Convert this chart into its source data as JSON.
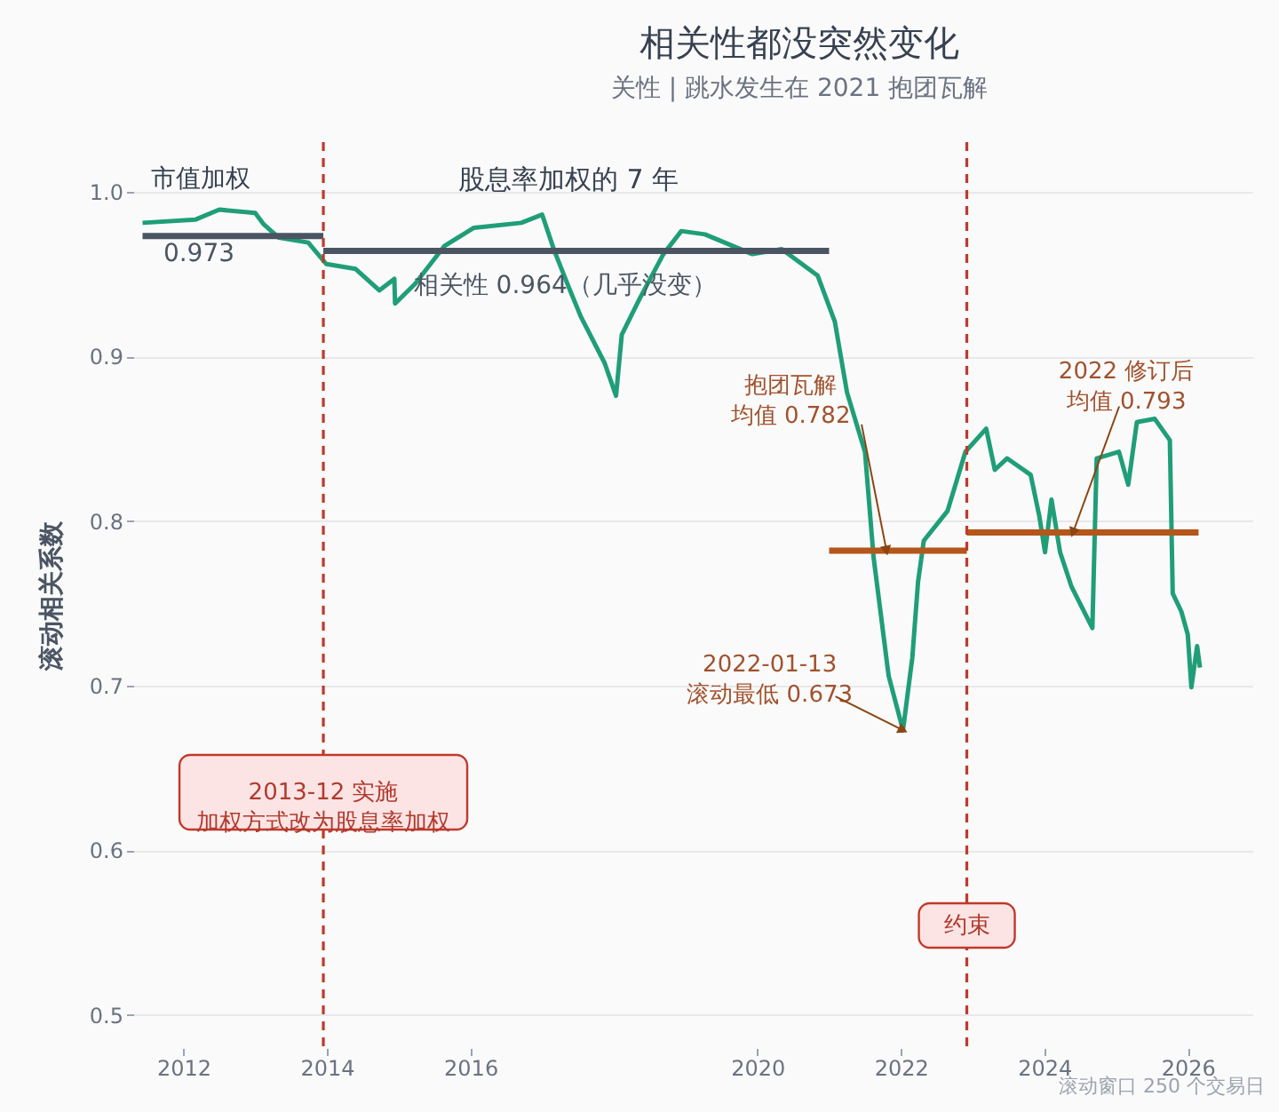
{
  "chart_data": {
    "type": "line",
    "title": "相关性都没突然变化",
    "subtitle": "关性 | 跳水发生在 2021 抱团瓦解",
    "ylabel": "滚动相关系数",
    "xlim": [
      2011.3,
      2026.9
    ],
    "xticks": [
      2012,
      2014,
      2016,
      2020,
      2022,
      2024,
      2026
    ],
    "ylim": [
      0.48,
      1.03
    ],
    "yticks": [
      0.5,
      0.6,
      0.7,
      0.8,
      0.9,
      {
        "value": 1,
        "label": "1.0"
      }
    ],
    "grid": "y",
    "marker": "none",
    "line_style": "solid",
    "series": [
      {
        "color": "#1f9e77",
        "x": [
          2011.43,
          2012.17,
          2012.5,
          2013.0,
          2013.12,
          2013.33,
          2013.74,
          2013.99,
          2014.4,
          2014.73,
          2014.94,
          2014.95,
          2015.23,
          2015.64,
          2016.05,
          2016.71,
          2017.0,
          2017.17,
          2017.37,
          2017.54,
          2017.87,
          2018.03,
          2018.11,
          2018.36,
          2018.69,
          2018.94,
          2019.27,
          2019.93,
          2020.34,
          2020.84,
          2021.08,
          2021.25,
          2021.5,
          2021.62,
          2021.83,
          2022.03,
          2022.16,
          2022.24,
          2022.32,
          2022.65,
          2022.9,
          2023.19,
          2023.31,
          2023.48,
          2023.81,
          2023.93,
          2024.01,
          2024.1,
          2024.22,
          2024.38,
          2024.67,
          2024.73,
          2025.04,
          2025.17,
          2025.29,
          2025.54,
          2025.75,
          2025.79,
          2025.91,
          2026.0,
          2026.05,
          2026.13,
          2026.17
        ],
        "values": [
          0.981,
          0.983,
          0.989,
          0.987,
          0.98,
          0.972,
          0.969,
          0.956,
          0.953,
          0.94,
          0.947,
          0.932,
          0.944,
          0.967,
          0.978,
          0.981,
          0.986,
          0.964,
          0.942,
          0.924,
          0.896,
          0.876,
          0.913,
          0.935,
          0.962,
          0.976,
          0.974,
          0.962,
          0.965,
          0.949,
          0.921,
          0.878,
          0.842,
          0.778,
          0.706,
          0.673,
          0.717,
          0.763,
          0.788,
          0.806,
          0.842,
          0.856,
          0.831,
          0.838,
          0.828,
          0.803,
          0.781,
          0.813,
          0.781,
          0.76,
          0.735,
          0.838,
          0.842,
          0.822,
          0.86,
          0.862,
          0.849,
          0.756,
          0.745,
          0.731,
          0.699,
          0.724,
          0.711
        ]
      },
      {
        "color": "#4a5462",
        "x": [
          2011.43,
          2013.95
        ],
        "values": [
          0.973,
          0.973
        ]
      },
      {
        "color": "#4a5462",
        "x": [
          2013.95,
          2021.0
        ],
        "values": [
          0.964,
          0.964
        ]
      },
      {
        "color": "#b5561b",
        "x": [
          2021.0,
          2022.92
        ],
        "values": [
          0.782,
          0.782
        ]
      },
      {
        "color": "#b5561b",
        "x": [
          2022.92,
          2026.15
        ],
        "values": [
          0.793,
          0.793
        ]
      }
    ],
    "ref_lines": [
      {
        "axis": "x",
        "value": 2013.95,
        "label": "2013-12 实施加权方式改为股息率加权",
        "color": "#c0392b",
        "line_style": "dashed"
      },
      {
        "axis": "x",
        "value": 2022.92,
        "label": "约束",
        "color": "#c0392b",
        "line_style": "dashed"
      }
    ],
    "annotations": [
      "市值加权",
      "0.973",
      "股息率加权的 7 年",
      {
        "text": "相关性 0.964（几乎没变）",
        "x": 2017.32,
        "y": 0.95
      },
      {
        "text": "抱团瓦解均值 0.782",
        "x": 2021.8,
        "y": 0.782
      },
      {
        "text": "2022-01-13\n滚动最低 0.673",
        "x": 2022.03,
        "y": 0.673
      },
      {
        "text": "2022 修订后均值 0.793",
        "x": 2024.4,
        "y": 0.793
      },
      "滚动窗口 250 个交易日"
    ]
  }
}
